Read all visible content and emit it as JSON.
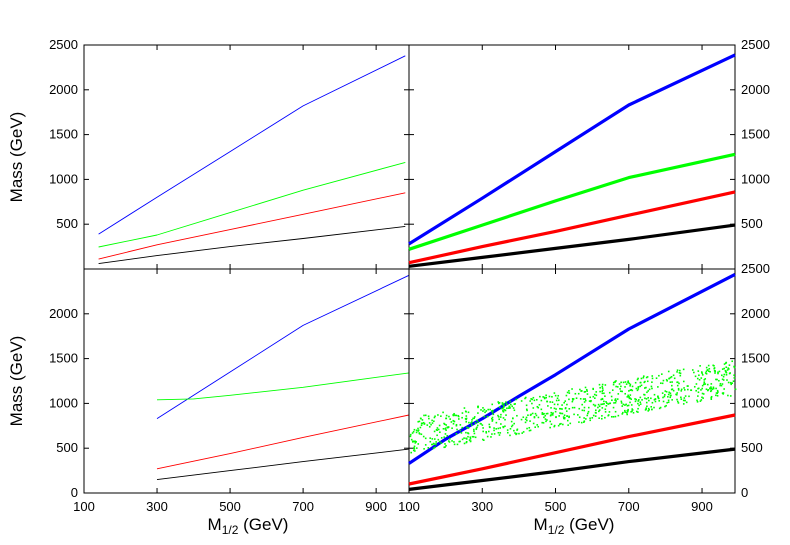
{
  "chart_data": [
    {
      "type": "line",
      "panel": "top-left",
      "ylabel": "Mass (GeV)",
      "xlim": [
        100,
        990
      ],
      "ylim": [
        0,
        2500
      ],
      "yticks": [
        "500",
        "1000",
        "1500",
        "2000",
        "2500"
      ],
      "yticks_side": "left",
      "series": [
        {
          "color": "#0000ff",
          "x": [
            140,
            300,
            500,
            700,
            980
          ],
          "y": [
            390,
            800,
            1310,
            1820,
            2380
          ]
        },
        {
          "color": "#00ff00",
          "x": [
            140,
            300,
            500,
            700,
            980
          ],
          "y": [
            245,
            380,
            630,
            880,
            1190
          ]
        },
        {
          "color": "#ff0000",
          "x": [
            140,
            300,
            500,
            700,
            980
          ],
          "y": [
            110,
            270,
            440,
            610,
            850
          ]
        },
        {
          "color": "#000000",
          "x": [
            140,
            300,
            500,
            700,
            980
          ],
          "y": [
            60,
            150,
            250,
            340,
            475
          ]
        }
      ]
    },
    {
      "type": "scatter",
      "panel": "top-right",
      "xlim": [
        100,
        990
      ],
      "ylim": [
        0,
        2500
      ],
      "yticks": [
        "500",
        "1000",
        "1500",
        "2000",
        "2500"
      ],
      "yticks_side": "right",
      "series": [
        {
          "color": "#0000ff",
          "x": [
            100,
            300,
            500,
            700,
            990
          ],
          "y": [
            280,
            790,
            1310,
            1830,
            2390
          ]
        },
        {
          "color": "#00ff00",
          "x": [
            100,
            300,
            500,
            700,
            990
          ],
          "y": [
            220,
            490,
            760,
            1020,
            1280
          ]
        },
        {
          "color": "#ff0000",
          "x": [
            100,
            300,
            500,
            700,
            990
          ],
          "y": [
            70,
            250,
            420,
            600,
            860
          ]
        },
        {
          "color": "#000000",
          "x": [
            100,
            300,
            500,
            700,
            990
          ],
          "y": [
            30,
            130,
            230,
            330,
            490
          ]
        }
      ]
    },
    {
      "type": "line",
      "panel": "bottom-left",
      "xlabel": "M1/2 (GeV)",
      "ylabel": "Mass (GeV)",
      "xlim": [
        100,
        990
      ],
      "ylim": [
        0,
        2500
      ],
      "xticks": [
        "100",
        "300",
        "500",
        "700",
        "900"
      ],
      "yticks": [
        "0",
        "500",
        "1000",
        "1500",
        "2000"
      ],
      "yticks_side": "left",
      "series": [
        {
          "color": "#0000ff",
          "x": [
            300,
            500,
            700,
            990
          ],
          "y": [
            830,
            1350,
            1870,
            2430
          ]
        },
        {
          "color": "#00ff00",
          "x": [
            300,
            400,
            500,
            700,
            990
          ],
          "y": [
            1040,
            1050,
            1090,
            1180,
            1340
          ]
        },
        {
          "color": "#ff0000",
          "x": [
            300,
            500,
            700,
            990
          ],
          "y": [
            270,
            440,
            620,
            870
          ]
        },
        {
          "color": "#000000",
          "x": [
            300,
            500,
            700,
            990
          ],
          "y": [
            150,
            250,
            350,
            490
          ]
        }
      ]
    },
    {
      "type": "scatter",
      "panel": "bottom-right",
      "xlabel": "M1/2 (GeV)",
      "xlim": [
        100,
        990
      ],
      "ylim": [
        0,
        2500
      ],
      "xticks": [
        "100",
        "300",
        "500",
        "700",
        "900"
      ],
      "yticks": [
        "0",
        "500",
        "1000",
        "1500",
        "2000",
        "2500"
      ],
      "yticks_side": "right",
      "series": [
        {
          "color": "#0000ff",
          "x": [
            100,
            200,
            300,
            400,
            500,
            700,
            990
          ],
          "y": [
            330,
            600,
            830,
            1080,
            1320,
            1830,
            2440
          ]
        },
        {
          "color": "#ff0000",
          "x": [
            100,
            300,
            500,
            700,
            990
          ],
          "y": [
            100,
            270,
            450,
            630,
            870
          ]
        },
        {
          "color": "#000000",
          "x": [
            100,
            300,
            500,
            700,
            990
          ],
          "y": [
            40,
            140,
            240,
            350,
            490
          ]
        },
        {
          "color": "#00ff00",
          "kind": "cloud",
          "x_range": [
            100,
            990
          ],
          "y_band_low": [
            450,
            1100
          ],
          "y_band_high": [
            850,
            1500
          ]
        }
      ]
    }
  ]
}
